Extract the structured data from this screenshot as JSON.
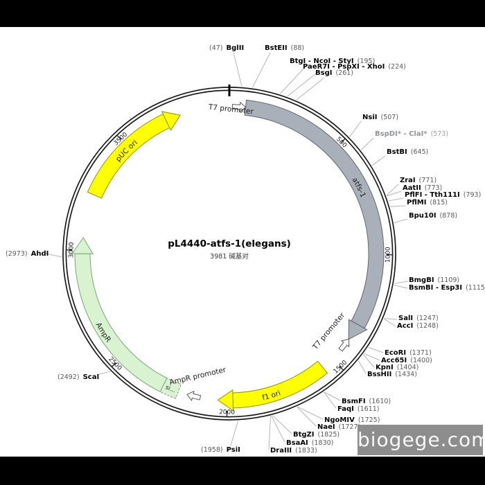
{
  "title": "pL4440-atfs-1(elegans)",
  "subtitle": "3981 碱基对",
  "plasmid_length_bp": 3981,
  "watermark": "biogege.com",
  "colors": {
    "backbone": "#1a1a1a",
    "cds_gray": "#a9b0ba",
    "ori_yellow": "#ffff00",
    "amp_green": "#d9f2d0",
    "leader_line": "#b5b5b5",
    "watermark_bg": "#8d8d8d"
  },
  "features": [
    {
      "name": "T7 promoter",
      "type": "promoter"
    },
    {
      "name": "atfs-1",
      "type": "cds",
      "color": "#a9b0ba",
      "stroke": "#606770"
    },
    {
      "name": "T7 promoter",
      "type": "promoter"
    },
    {
      "name": "f1 ori",
      "type": "ori",
      "color": "#ffff00",
      "stroke": "#8f8f1a"
    },
    {
      "name": "AmpR promoter",
      "type": "promoter"
    },
    {
      "name": "si...",
      "type": "signal",
      "color": "#d9f2d0",
      "stroke": "#8a8a8a"
    },
    {
      "name": "AmpR",
      "type": "cds",
      "color": "#d9f2d0",
      "stroke": "#74a874"
    },
    {
      "name": "pUC ori",
      "type": "ori",
      "color": "#ffff00",
      "stroke": "#8f8f1a"
    }
  ],
  "ticks": [
    {
      "bp": 500,
      "label": "500"
    },
    {
      "bp": 1000,
      "label": "1000"
    },
    {
      "bp": 1500,
      "label": "1500"
    },
    {
      "bp": 2000,
      "label": "2000"
    },
    {
      "bp": 2500,
      "label": "2500"
    },
    {
      "bp": 3000,
      "label": "3000"
    },
    {
      "bp": 3500,
      "label": "3500"
    }
  ],
  "sites": [
    {
      "name": "BglII",
      "pos": "(47)",
      "bp": 47
    },
    {
      "name": "BstEII",
      "pos": "(88)",
      "bp": 88
    },
    {
      "name": "BtgI - NcoI - StyI",
      "pos": "(195)",
      "bp": 195
    },
    {
      "name": "PaeR7I - PspXI - XhoI",
      "pos": "(224)",
      "bp": 224
    },
    {
      "name": "BsgI",
      "pos": "(261)",
      "bp": 261
    },
    {
      "name": "NsiI",
      "pos": "(507)",
      "bp": 507
    },
    {
      "name": "BspDI* - ClaI*",
      "pos": "(573)",
      "bp": 573,
      "gray": true
    },
    {
      "name": "BstBI",
      "pos": "(645)",
      "bp": 645
    },
    {
      "name": "ZraI",
      "pos": "(771)",
      "bp": 771
    },
    {
      "name": "AatII",
      "pos": "(773)",
      "bp": 773
    },
    {
      "name": "PflFI - Tth111I",
      "pos": "(793)",
      "bp": 793
    },
    {
      "name": "PflMI",
      "pos": "(815)",
      "bp": 815
    },
    {
      "name": "Bpu10I",
      "pos": "(878)",
      "bp": 878
    },
    {
      "name": "BmgBI",
      "pos": "(1109)",
      "bp": 1109
    },
    {
      "name": "BsmBI - Esp3I",
      "pos": "(1115)",
      "bp": 1115
    },
    {
      "name": "SalI",
      "pos": "(1247)",
      "bp": 1247
    },
    {
      "name": "AccI",
      "pos": "(1248)",
      "bp": 1248
    },
    {
      "name": "EcoRI",
      "pos": "(1371)",
      "bp": 1371
    },
    {
      "name": "Acc65I",
      "pos": "(1400)",
      "bp": 1400
    },
    {
      "name": "KpnI",
      "pos": "(1404)",
      "bp": 1404
    },
    {
      "name": "BssHII",
      "pos": "(1434)",
      "bp": 1434
    },
    {
      "name": "BsmFI",
      "pos": "(1610)",
      "bp": 1610
    },
    {
      "name": "FaqI",
      "pos": "(1611)",
      "bp": 1611
    },
    {
      "name": "NgoMIV",
      "pos": "(1725)",
      "bp": 1725
    },
    {
      "name": "NaeI",
      "pos": "(1727)",
      "bp": 1727
    },
    {
      "name": "BtgZI",
      "pos": "(1825)",
      "bp": 1825
    },
    {
      "name": "BsaAI",
      "pos": "(1830)",
      "bp": 1830
    },
    {
      "name": "DraIII",
      "pos": "(1833)",
      "bp": 1833
    },
    {
      "name": "PsiI",
      "pos": "(1958)",
      "bp": 1958
    },
    {
      "name": "ScaI",
      "pos": "(2492)",
      "bp": 2492
    },
    {
      "name": "AhdI",
      "pos": "(2973)",
      "bp": 2973
    }
  ]
}
